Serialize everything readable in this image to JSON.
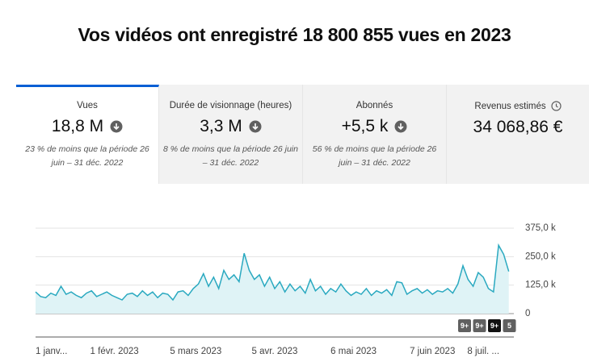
{
  "header": {
    "title": "Vos vidéos ont enregistré 18 800 855 vues en 2023"
  },
  "tabs": [
    {
      "label": "Vues",
      "value": "18,8 M",
      "note": "23 % de moins que la période 26 juin – 31 déc. 2022"
    },
    {
      "label": "Durée de visionnage (heures)",
      "value": "3,3 M",
      "note": "8 % de moins que la période 26 juin – 31 déc. 2022"
    },
    {
      "label": "Abonnés",
      "value": "+5,5 k",
      "note": "56 % de moins que la période 26 juin – 31 déc. 2022"
    },
    {
      "label": "Revenus estimés",
      "value": "34 068,86 €"
    }
  ],
  "chart_data": {
    "type": "line",
    "color": "#2aa9c0",
    "grid": true,
    "values": [
      95,
      75,
      70,
      90,
      80,
      120,
      85,
      95,
      80,
      70,
      90,
      100,
      75,
      85,
      95,
      80,
      70,
      60,
      85,
      90,
      75,
      100,
      80,
      95,
      70,
      90,
      85,
      60,
      95,
      100,
      80,
      110,
      130,
      175,
      120,
      160,
      110,
      190,
      150,
      170,
      140,
      265,
      190,
      150,
      170,
      120,
      160,
      110,
      140,
      95,
      130,
      100,
      120,
      90,
      150,
      100,
      120,
      85,
      110,
      95,
      130,
      100,
      80,
      95,
      85,
      110,
      80,
      100,
      90,
      105,
      80,
      140,
      135,
      85,
      100,
      110,
      90,
      105,
      85,
      100,
      95,
      110,
      90,
      130,
      210,
      150,
      120,
      180,
      160,
      110,
      95,
      300,
      260,
      185
    ],
    "xlim": [
      0,
      94
    ],
    "xticks": [
      {
        "value": 0,
        "label": "1 janv..."
      },
      {
        "value": 15.5,
        "label": "1 févr. 2023"
      },
      {
        "value": 31.5,
        "label": "5 mars 2023"
      },
      {
        "value": 47,
        "label": "5 avr. 2023"
      },
      {
        "value": 62.5,
        "label": "6 mai 2023"
      },
      {
        "value": 78,
        "label": "7 juin 2023"
      },
      {
        "value": 88,
        "label": "8 juil. ..."
      }
    ],
    "ylim": [
      0,
      375
    ],
    "yticks": [
      0,
      {
        "value": 125,
        "label": "125,0 k"
      },
      {
        "value": 250,
        "label": "250,0 k"
      },
      {
        "value": 375,
        "label": "375,0 k"
      }
    ],
    "badges": [
      "9+",
      "9+",
      "9+",
      "5"
    ]
  }
}
